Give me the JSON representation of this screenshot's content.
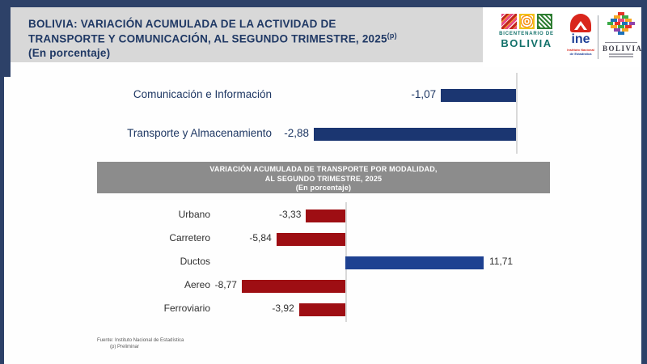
{
  "header": {
    "title_line1": "BOLIVIA: VARIACIÓN ACUMULADA DE LA ACTIVIDAD DE",
    "title_line2": "TRANSPORTE Y COMUNICACIÓN, AL SEGUNDO TRIMESTRE, 2025",
    "title_sup": "(p)",
    "title_line3": "(En porcentaje)"
  },
  "logos": {
    "bicentenario_top": "BICENTENARIO DE",
    "bicentenario_name": "BOLIVIA",
    "ine_name": "ine",
    "ine_caption1": "Instituto Nacional",
    "ine_caption2": "de Estadística",
    "bolivia_name": "BOLIVIA"
  },
  "chart_data": [
    {
      "type": "bar",
      "orientation": "horizontal",
      "categories": [
        "Comunicación e Información",
        "Transporte y Almacenamiento"
      ],
      "values": [
        -1.07,
        -2.88
      ],
      "value_labels": [
        "-1,07",
        "-2,88"
      ],
      "bar_color": "#1b3671",
      "xlim": [
        -3.6,
        0
      ],
      "grid": false,
      "legend": "none"
    },
    {
      "type": "bar",
      "orientation": "horizontal",
      "title": "VARIACIÓN ACUMULADA  DE TRANSPORTE POR MODALIDAD,",
      "subtitle": "AL SEGUNDO TRIMESTRE, 2025",
      "unit_label": "(En  porcentaje)",
      "categories": [
        "Urbano",
        "Carretero",
        "Ductos",
        "Aereo",
        "Ferroviario"
      ],
      "values": [
        -3.33,
        -5.84,
        11.71,
        -8.77,
        -3.92
      ],
      "value_labels": [
        "-3,33",
        "-5,84",
        "11,71",
        "-8,77",
        "-3,92"
      ],
      "negative_color": "#9e0e13",
      "positive_color": "#1e4191",
      "xlim": [
        -28,
        25
      ],
      "grid": false,
      "legend": "none"
    }
  ],
  "footer": {
    "source": "Fuente: Instituto Nacional de Estadística",
    "note": "(p) Preliminar"
  }
}
